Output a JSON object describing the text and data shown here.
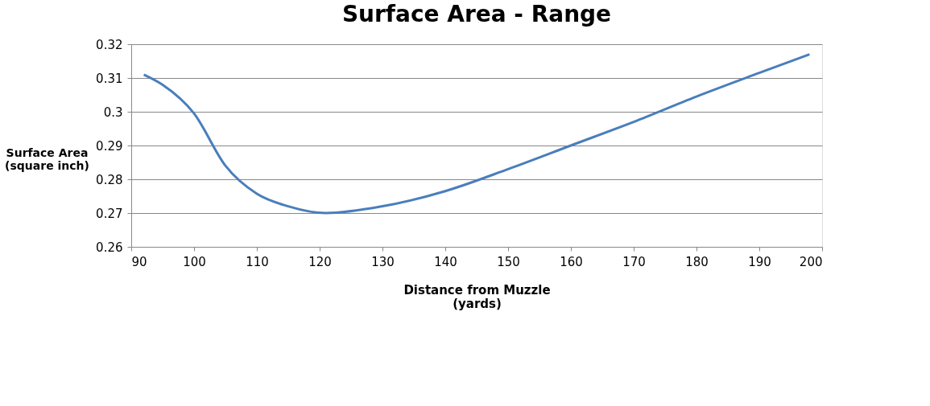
{
  "chart_data": {
    "type": "line",
    "title": "Surface Area - Range",
    "xlabel": "Distance from Muzzle\n(yards)",
    "ylabel": "Surface Area\n(square inch)",
    "x": [
      92,
      95,
      100,
      105,
      110,
      115,
      121,
      130,
      140,
      150,
      160,
      170,
      180,
      190,
      198
    ],
    "series": [
      {
        "color": "#4a7ebb",
        "values": [
          0.311,
          0.308,
          0.2995,
          0.284,
          0.2757,
          0.272,
          0.27,
          0.272,
          0.2765,
          0.283,
          0.29,
          0.297,
          0.3045,
          0.3115,
          0.317
        ]
      }
    ],
    "xlim": [
      90,
      200
    ],
    "xticks": [
      90,
      100,
      110,
      120,
      130,
      140,
      150,
      160,
      170,
      180,
      190,
      200
    ],
    "ylim": [
      0.26,
      0.32
    ],
    "yticks": [
      0.26,
      0.27,
      0.28,
      0.29,
      {
        "value": 0.3,
        "label": "0.3"
      },
      0.31,
      0.32
    ],
    "grid": "y",
    "marker": "none",
    "line_style": "solid",
    "legend": false
  }
}
